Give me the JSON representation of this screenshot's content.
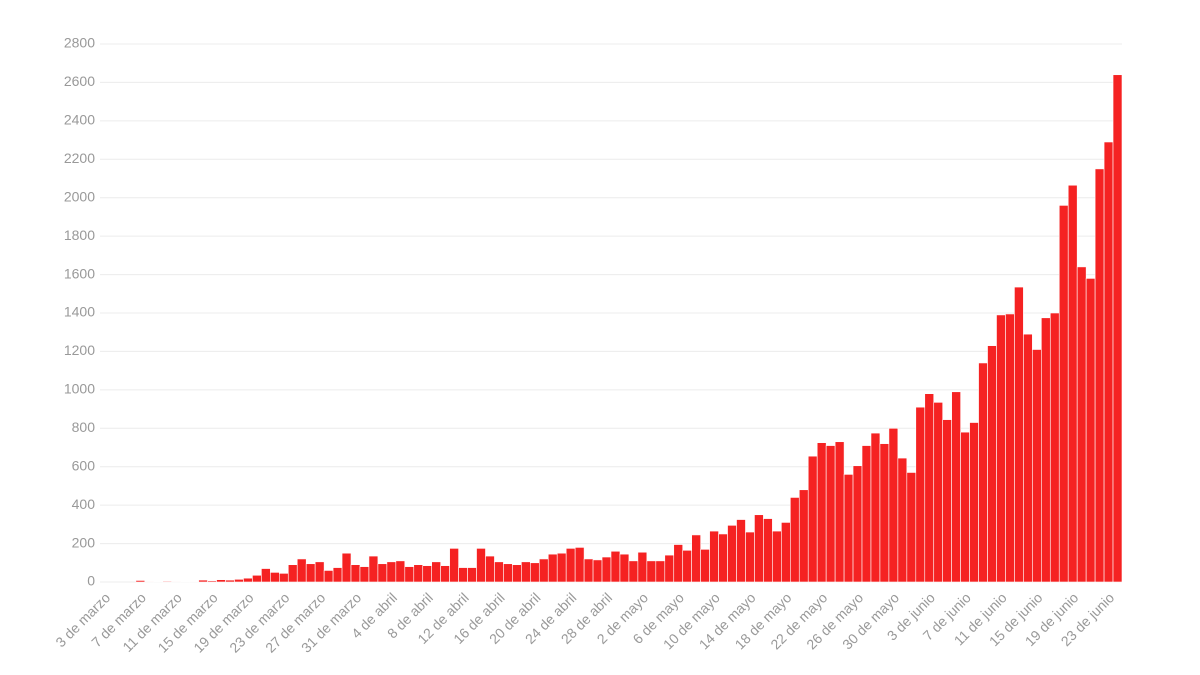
{
  "chart_data": {
    "type": "bar",
    "color": "#f52222",
    "grid": true,
    "ylim": [
      0,
      2800
    ],
    "yticks": [
      0,
      200,
      400,
      600,
      800,
      1000,
      1200,
      1400,
      1600,
      1800,
      2000,
      2200,
      2400,
      2600,
      2800
    ],
    "categories": [
      "3 de marzo",
      null,
      null,
      null,
      "7 de marzo",
      null,
      null,
      null,
      "11 de marzo",
      null,
      null,
      null,
      "15 de marzo",
      null,
      null,
      null,
      "19 de marzo",
      null,
      null,
      null,
      "23 de marzo",
      null,
      null,
      null,
      "27 de marzo",
      null,
      null,
      null,
      "31 de marzo",
      null,
      null,
      null,
      "4 de abril",
      null,
      null,
      null,
      "8 de abril",
      null,
      null,
      null,
      "12 de abril",
      null,
      null,
      null,
      "16 de abril",
      null,
      null,
      null,
      "20 de abril",
      null,
      null,
      null,
      "24 de abril",
      null,
      null,
      null,
      "28 de abril",
      null,
      null,
      null,
      "2 de mayo",
      null,
      null,
      null,
      "6 de mayo",
      null,
      null,
      null,
      "10 de mayo",
      null,
      null,
      null,
      "14 de mayo",
      null,
      null,
      null,
      "18 de mayo",
      null,
      null,
      null,
      "22 de mayo",
      null,
      null,
      null,
      "26 de mayo",
      null,
      null,
      null,
      "30 de mayo",
      null,
      null,
      null,
      "3 de junio",
      null,
      null,
      null,
      "7 de junio",
      null,
      null,
      null,
      "11 de junio",
      null,
      null,
      null,
      "15 de junio",
      null,
      null,
      null,
      "19 de junio",
      null,
      null,
      null,
      "23 de junio",
      null
    ],
    "values": [
      0,
      0,
      0,
      0,
      8,
      3,
      2,
      4,
      3,
      2,
      1,
      10,
      6,
      12,
      10,
      14,
      20,
      35,
      70,
      50,
      45,
      90,
      120,
      95,
      105,
      60,
      75,
      150,
      90,
      80,
      135,
      95,
      105,
      110,
      80,
      90,
      85,
      105,
      85,
      175,
      75,
      75,
      175,
      135,
      105,
      95,
      90,
      105,
      100,
      120,
      145,
      150,
      175,
      180,
      120,
      115,
      130,
      160,
      145,
      110,
      155,
      110,
      110,
      140,
      195,
      165,
      245,
      170,
      265,
      250,
      295,
      325,
      260,
      350,
      330,
      265,
      310,
      440,
      480,
      655,
      725,
      710,
      730,
      560,
      605,
      710,
      775,
      720,
      800,
      645,
      570,
      910,
      980,
      935,
      845,
      990,
      780,
      830,
      1140,
      1230,
      1390,
      1395,
      1535,
      1290,
      1210,
      1375,
      1400,
      1960,
      2065,
      1640,
      1580,
      2150,
      2290,
      2640
    ]
  }
}
